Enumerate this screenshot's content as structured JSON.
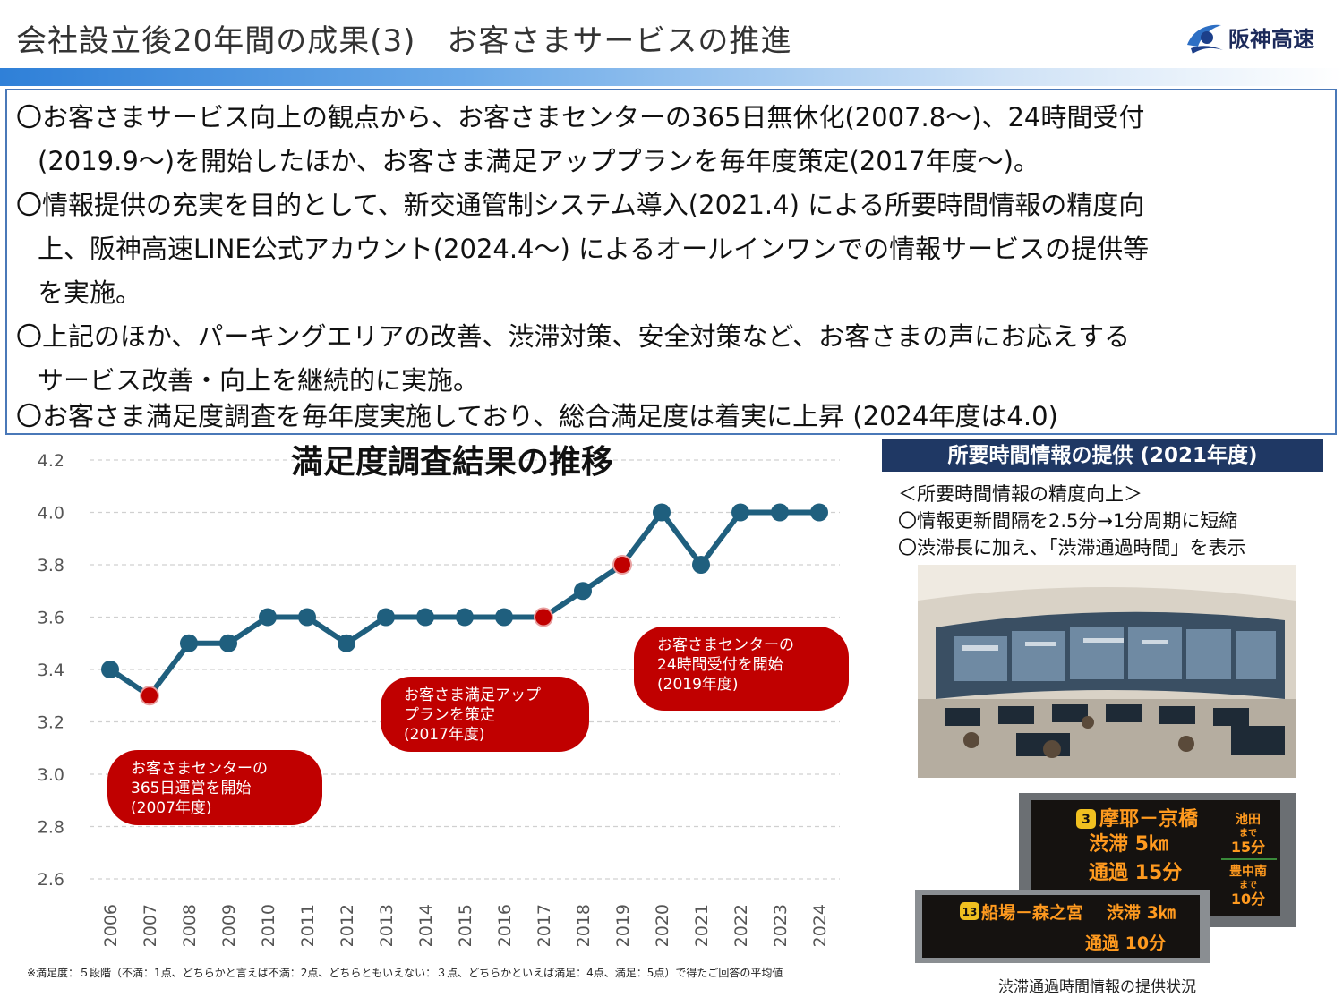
{
  "header": {
    "title": "会社設立後20年間の成果(3)　お客さまサービスの推進",
    "logo_text": "阪神高速"
  },
  "summary": [
    [
      "〇お客さまサービス向上の観点から、お客さまセンターの365日無休化(2007.8～)、24時間受付",
      "(2019.9～)を開始したほか、お客さま満足アッププランを毎年度策定(2017年度～)。"
    ],
    [
      "〇情報提供の充実を目的として、新交通管制システム導入(2021.4) による所要時間情報の精度向",
      "上、阪神高速LINE公式アカウント(2024.4～) によるオールインワンでの情報サービスの提供等",
      "を実施。"
    ],
    [
      "〇上記のほか、パーキングエリアの改善、渋滞対策、安全対策など、お客さまの声にお応えする",
      "サービス改善・向上を継続的に実施。"
    ],
    [
      "〇お客さま満足度調査を毎年度実施しており、総合満足度は着実に上昇 (2024年度は4.0)"
    ]
  ],
  "chart_data": {
    "type": "line",
    "title": "満足度調査結果の推移",
    "xlabel": "",
    "ylabel": "",
    "categories": [
      "2006",
      "2007",
      "2008",
      "2009",
      "2010",
      "2011",
      "2012",
      "2013",
      "2014",
      "2015",
      "2016",
      "2017",
      "2018",
      "2019",
      "2020",
      "2021",
      "2022",
      "2023",
      "2024"
    ],
    "values": [
      3.4,
      3.3,
      3.5,
      3.5,
      3.6,
      3.6,
      3.5,
      3.6,
      3.6,
      3.6,
      3.6,
      3.6,
      3.7,
      3.8,
      4.0,
      3.8,
      4.0,
      4.0,
      4.0
    ],
    "highlighted_categories": [
      "2007",
      "2017",
      "2019"
    ],
    "ylim": [
      2.6,
      4.2
    ],
    "yticks": [
      "4.2",
      "4.0",
      "3.8",
      "3.6",
      "3.4",
      "3.2",
      "3.0",
      "2.8",
      "2.6"
    ],
    "grid": true,
    "colors": {
      "line": "#1f5f7e",
      "marker_highlight": "#c00000",
      "annotation_bg": "#c00000",
      "grid": "#d0d0d0"
    },
    "annotations": [
      {
        "category": "2007",
        "lines": [
          "お客さまセンターの",
          "365日運営を開始",
          "(2007年度)"
        ]
      },
      {
        "category": "2017",
        "lines": [
          "お客さま満足アップ",
          "プランを策定",
          "(2017年度)"
        ]
      },
      {
        "category": "2019",
        "lines": [
          "お客さまセンターの",
          "24時間受付を開始",
          "(2019年度)"
        ]
      }
    ]
  },
  "footnote": "※満足度：５段階（不満：1点、どちらかと言えば不満：2点、どちらともいえない：３点、どちらかといえば満足：4点、満足：5点）で得たご回答の平均値",
  "side": {
    "header": "所要時間情報の提供 (2021年度)",
    "subtitle": "＜所要時間情報の精度向上＞",
    "bullets": [
      "〇情報更新間隔を2.5分→1分周期に短縮",
      "〇渋滞長に加え、「渋滞通過時間」を表示"
    ],
    "sign_back": {
      "route_no": "3",
      "route": "摩耶－京橋",
      "jam": "渋滞 5㎞",
      "time": "通過 15分",
      "side1": [
        "池田",
        "まで",
        "15分"
      ],
      "side2": [
        "豊中南",
        "まで",
        "10分"
      ]
    },
    "sign_front": {
      "route_no": "13",
      "route": "船場－森之宮",
      "jam": "渋滞 3㎞",
      "time": "通過 10分"
    },
    "caption": "渋滞通過時間情報の提供状況"
  }
}
